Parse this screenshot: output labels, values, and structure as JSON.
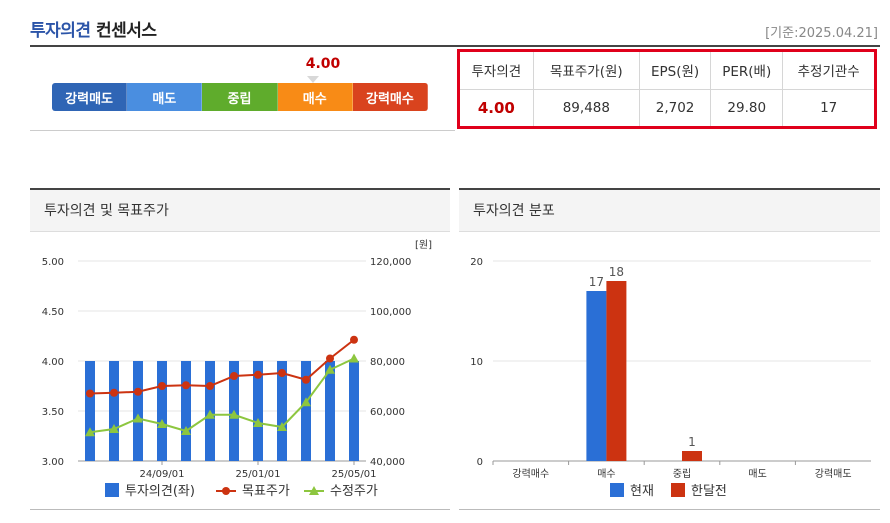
{
  "header": {
    "title_blue": "투자의견",
    "title_dark": " 컨센서스",
    "base_date": "[기준:2025.04.21]"
  },
  "opinion_scale": {
    "segments": [
      {
        "label": "강력매도",
        "color": "#2f65b5"
      },
      {
        "label": "매도",
        "color": "#4a8ee0"
      },
      {
        "label": "중립",
        "color": "#5fac2c"
      },
      {
        "label": "매수",
        "color": "#f88b16"
      },
      {
        "label": "강력매수",
        "color": "#d9431e"
      }
    ],
    "indicator_value": "4.00"
  },
  "consensus_table": {
    "headers": [
      "투자의견",
      "목표주가(원)",
      "EPS(원)",
      "PER(배)",
      "추정기관수"
    ],
    "values": [
      "4.00",
      "89,488",
      "2,702",
      "29.80",
      "17"
    ]
  },
  "panels": {
    "left_title": "투자의견 및 목표주가",
    "right_title": "투자의견 분포"
  },
  "chart_data": [
    {
      "type": "bar",
      "title": "투자의견 및 목표주가",
      "y_unit_label": "[원]",
      "x_tick_labels": [
        "24/09/01",
        "25/01/01",
        "25/05/01"
      ],
      "left_axis": {
        "ylim": [
          3.0,
          5.0
        ],
        "ticks": [
          "5.00",
          "4.50",
          "4.00",
          "3.50",
          "3.00"
        ]
      },
      "right_axis": {
        "ylim": [
          40000,
          120000
        ],
        "ticks": [
          "120,000",
          "100,000",
          "80,000",
          "60,000",
          "40,000"
        ]
      },
      "series": [
        {
          "name": "투자의견(좌)",
          "kind": "bar",
          "axis": "left",
          "color": "#2a6fd6",
          "values": [
            4.0,
            4.0,
            4.0,
            4.0,
            4.0,
            4.0,
            4.0,
            4.0,
            4.0,
            4.0,
            4.0,
            4.0
          ]
        },
        {
          "name": "목표주가",
          "kind": "line",
          "axis": "right",
          "color": "#cc3311",
          "values": [
            67000,
            67300,
            67700,
            70000,
            70300,
            70000,
            74000,
            74500,
            75200,
            72500,
            81000,
            88500
          ]
        },
        {
          "name": "수정주가",
          "kind": "line",
          "axis": "right",
          "color": "#8dc63f",
          "values": [
            51500,
            52800,
            57000,
            54800,
            52000,
            58500,
            58500,
            55200,
            53600,
            63500,
            76500,
            81000
          ]
        }
      ]
    },
    {
      "type": "bar",
      "title": "투자의견 분포",
      "categories": [
        "강력매수",
        "매수",
        "중립",
        "매도",
        "강력매도"
      ],
      "ylim": [
        0,
        20
      ],
      "y_ticks": [
        "20",
        "10",
        "0"
      ],
      "series": [
        {
          "name": "현재",
          "color": "#2a6fd6",
          "values": [
            0,
            17,
            0,
            0,
            0
          ],
          "labels": [
            "",
            "17",
            "",
            "",
            ""
          ]
        },
        {
          "name": "한달전",
          "color": "#cc3311",
          "values": [
            0,
            18,
            1,
            0,
            0
          ],
          "labels": [
            "",
            "18",
            "1",
            "",
            ""
          ]
        }
      ]
    }
  ]
}
